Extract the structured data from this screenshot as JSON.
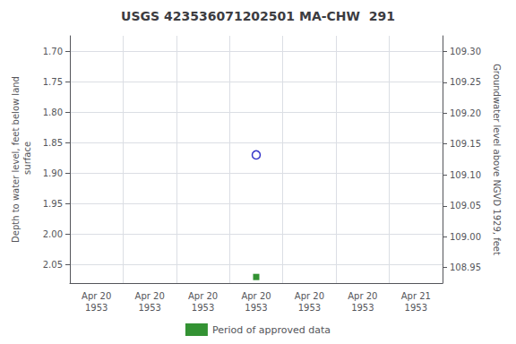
{
  "chart_data": {
    "type": "scatter",
    "title": "USGS 423536071202501 MA-CHW  291",
    "y_label": "Depth to water level, feet below land\n surface",
    "y2_label": "Groundwater level above NGVD 1929, feet",
    "categories": [
      "Apr 20\n1953",
      "Apr 20\n1953",
      "Apr 20\n1953",
      "Apr 20\n1953",
      "Apr 20\n1953",
      "Apr 20\n1953",
      "Apr 21\n1953"
    ],
    "series": [
      {
        "color": "#0000bb",
        "marker": "circle_open",
        "values": [
          null,
          null,
          null,
          1.87,
          null,
          null,
          null
        ]
      },
      {
        "name": "Period of approved data",
        "color": "#007700",
        "marker": "square",
        "values": [
          null,
          null,
          null,
          2.07,
          null,
          null,
          null
        ]
      }
    ],
    "ylim": [
      2.08,
      1.675
    ],
    "yticks": [
      {
        "value": 1.7,
        "label": "1.70"
      },
      1.75,
      {
        "value": 1.8,
        "label": "1.80"
      },
      1.85,
      {
        "value": 1.9,
        "label": "1.90"
      },
      1.95,
      {
        "value": 2.0,
        "label": "2.00"
      },
      2.05
    ],
    "y2lim": [
      108.925,
      109.325
    ],
    "y2ticks": [
      {
        "value": 109.3,
        "label": "109.30"
      },
      109.25,
      {
        "value": 109.2,
        "label": "109.20"
      },
      109.15,
      {
        "value": 109.1,
        "label": "109.10"
      },
      109.05,
      {
        "value": 109.0,
        "label": "109.00"
      },
      108.95
    ],
    "grid": true,
    "legend": "bottom",
    "color": "#ffffff"
  }
}
